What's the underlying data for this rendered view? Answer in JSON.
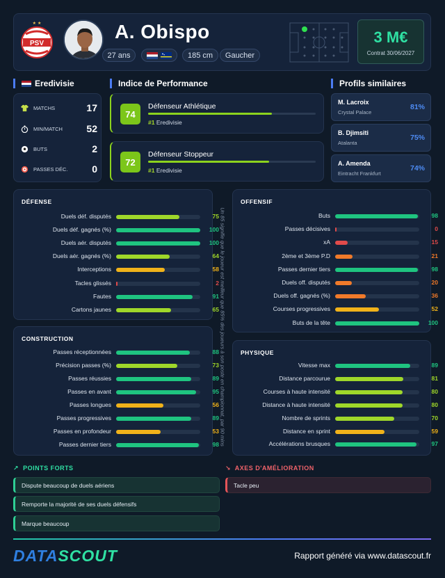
{
  "player": {
    "name": "A. Obispo",
    "age": "27 ans",
    "height": "185 cm",
    "foot": "Gaucher",
    "club_abbr": "PSV"
  },
  "value": {
    "amount": "3 M€",
    "contract": "Contrat 30/06/2027"
  },
  "league": {
    "title": "Eredivisie",
    "stats": [
      {
        "label": "MATCHS",
        "value": "17",
        "icon": "jersey-icon"
      },
      {
        "label": "MIN/MATCH",
        "value": "52",
        "icon": "stopwatch-icon"
      },
      {
        "label": "BUTS",
        "value": "2",
        "icon": "ball-icon"
      },
      {
        "label": "PASSES DÉC.",
        "value": "0",
        "icon": "target-icon"
      }
    ]
  },
  "performance": {
    "title": "Indice de Performance",
    "items": [
      {
        "score": "74",
        "role": "Défenseur Athlétique",
        "rank": "#1",
        "league": "Eredivisie",
        "level": 0.74
      },
      {
        "score": "72",
        "role": "Défenseur Stoppeur",
        "rank": "#1",
        "league": "Eredivisie",
        "level": 0.72
      }
    ]
  },
  "similar": {
    "title": "Profils similaires",
    "items": [
      {
        "name": "M. Lacroix",
        "club": "Crystal Palace",
        "pct": "81%"
      },
      {
        "name": "B. Djimsiti",
        "club": "Atalanta",
        "pct": "75%"
      },
      {
        "name": "A. Amenda",
        "club": "Eintracht Frankfurt",
        "pct": "74%"
      }
    ]
  },
  "sections": {
    "defense": {
      "title": "DÉFENSE",
      "rows": [
        {
          "label": "Duels déf. disputés",
          "value": 75
        },
        {
          "label": "Duels déf. gagnés (%)",
          "value": 100
        },
        {
          "label": "Duels aér. disputés",
          "value": 100
        },
        {
          "label": "Duels aér. gagnés (%)",
          "value": 64
        },
        {
          "label": "Interceptions",
          "value": 58
        },
        {
          "label": "Tacles glissés",
          "value": 2
        },
        {
          "label": "Fautes",
          "value": 91
        },
        {
          "label": "Cartons jaunes",
          "value": 65
        }
      ]
    },
    "offensive": {
      "title": "OFFENSIF",
      "rows": [
        {
          "label": "Buts",
          "value": 98
        },
        {
          "label": "Passes décisives",
          "value": 0
        },
        {
          "label": "xA",
          "value": 15
        },
        {
          "label": "2ème et 3ème P.D",
          "value": 21
        },
        {
          "label": "Passes dernier tiers",
          "value": 98
        },
        {
          "label": "Duels off. disputés",
          "value": 20
        },
        {
          "label": "Duels off. gagnés (%)",
          "value": 36
        },
        {
          "label": "Courses progressives",
          "value": 52
        },
        {
          "label": "Buts de la tête",
          "value": 100
        }
      ]
    },
    "construction": {
      "title": "CONSTRUCTION",
      "rows": [
        {
          "label": "Passes réceptionnées",
          "value": 88
        },
        {
          "label": "Précision passes (%)",
          "value": 73
        },
        {
          "label": "Passes réussies",
          "value": 89
        },
        {
          "label": "Passes en avant",
          "value": 95
        },
        {
          "label": "Passes longues",
          "value": 56
        },
        {
          "label": "Passes progressives",
          "value": 89
        },
        {
          "label": "Passes en profondeur",
          "value": 53
        },
        {
          "label": "Passes dernier tiers",
          "value": 98
        }
      ]
    },
    "physique": {
      "title": "PHYSIQUE",
      "rows": [
        {
          "label": "Vitesse max",
          "value": 89
        },
        {
          "label": "Distance parcourue",
          "value": 81
        },
        {
          "label": "Courses à haute intensité",
          "value": 80
        },
        {
          "label": "Distance à haute intensité",
          "value": 80
        },
        {
          "label": "Nombre de sprints",
          "value": 70
        },
        {
          "label": "Distance en sprint",
          "value": 59
        },
        {
          "label": "Accélérations brusques",
          "value": 97
        }
      ]
    }
  },
  "note": "Un 85 signifie que le joueur est meilleur que 85% des joueurs à son poste en championnat, par 90 mins",
  "strengths": {
    "title": "POINTS FORTS",
    "items": [
      "Dispute beaucoup de duels aériens",
      "Remporte la majorité de ses duels défensifs",
      "Marque beaucoup"
    ]
  },
  "improvements": {
    "title": "AXES D'AMÉLIORATION",
    "items": [
      "Tacle peu"
    ]
  },
  "footer": {
    "brand_a": "DATA",
    "brand_b": "SCOUT",
    "text": "Rapport généré via www.datascout.fr"
  },
  "colors": {
    "green": "#1fc480",
    "lime": "#9fd72a",
    "orange": "#f0b21a",
    "orange_dark": "#f07a2a",
    "red": "#e14b4b"
  }
}
